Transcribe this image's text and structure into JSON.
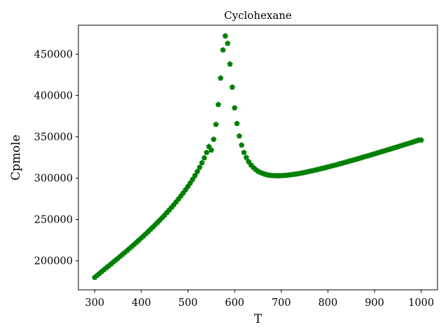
{
  "chart_data": {
    "type": "scatter",
    "title": "Cyclohexane",
    "xlabel": "T",
    "ylabel": "Cpmole",
    "xlim": [
      265,
      1035
    ],
    "ylim": [
      165000,
      485000
    ],
    "xticks": [
      300,
      400,
      500,
      600,
      700,
      800,
      900,
      1000
    ],
    "yticks": [
      200000,
      250000,
      300000,
      350000,
      400000,
      450000
    ],
    "grid": false,
    "marker": "pentagon",
    "color": "#008000",
    "series": [
      {
        "points": [
          [
            300,
            180000
          ],
          [
            305,
            182300
          ],
          [
            310,
            184700
          ],
          [
            315,
            187000
          ],
          [
            320,
            189300
          ],
          [
            325,
            191600
          ],
          [
            330,
            193900
          ],
          [
            335,
            196200
          ],
          [
            340,
            198600
          ],
          [
            345,
            200900
          ],
          [
            350,
            203200
          ],
          [
            355,
            205600
          ],
          [
            360,
            208000
          ],
          [
            365,
            210300
          ],
          [
            370,
            212700
          ],
          [
            375,
            215200
          ],
          [
            380,
            217600
          ],
          [
            385,
            220100
          ],
          [
            390,
            222600
          ],
          [
            395,
            225100
          ],
          [
            400,
            227700
          ],
          [
            405,
            230300
          ],
          [
            410,
            232900
          ],
          [
            415,
            235600
          ],
          [
            420,
            238300
          ],
          [
            425,
            241000
          ],
          [
            430,
            243800
          ],
          [
            435,
            246600
          ],
          [
            440,
            249500
          ],
          [
            445,
            252400
          ],
          [
            450,
            255400
          ],
          [
            455,
            258500
          ],
          [
            460,
            261600
          ],
          [
            465,
            264800
          ],
          [
            470,
            268100
          ],
          [
            475,
            271500
          ],
          [
            480,
            275000
          ],
          [
            485,
            278600
          ],
          [
            490,
            282300
          ],
          [
            495,
            286100
          ],
          [
            500,
            290100
          ],
          [
            505,
            294300
          ],
          [
            510,
            298600
          ],
          [
            515,
            303200
          ],
          [
            520,
            308000
          ],
          [
            525,
            313100
          ],
          [
            530,
            318600
          ],
          [
            535,
            324500
          ],
          [
            540,
            331000
          ],
          [
            545,
            338200
          ],
          [
            550,
            334000
          ],
          [
            555,
            347000
          ],
          [
            560,
            365000
          ],
          [
            565,
            389000
          ],
          [
            570,
            421000
          ],
          [
            575,
            455000
          ],
          [
            580,
            472000
          ],
          [
            585,
            463000
          ],
          [
            590,
            438000
          ],
          [
            595,
            410000
          ],
          [
            600,
            385000
          ],
          [
            605,
            366000
          ],
          [
            610,
            351000
          ],
          [
            615,
            340000
          ],
          [
            620,
            331000
          ],
          [
            625,
            325000
          ],
          [
            630,
            320000
          ],
          [
            635,
            316000
          ],
          [
            640,
            313000
          ],
          [
            645,
            310500
          ],
          [
            650,
            308500
          ],
          [
            655,
            307000
          ],
          [
            660,
            305800
          ],
          [
            665,
            304800
          ],
          [
            670,
            304000
          ],
          [
            675,
            303500
          ],
          [
            680,
            303200
          ],
          [
            685,
            303000
          ],
          [
            690,
            302900
          ],
          [
            695,
            302900
          ],
          [
            700,
            303000
          ],
          [
            705,
            303200
          ],
          [
            710,
            303400
          ],
          [
            715,
            303700
          ],
          [
            720,
            304000
          ],
          [
            725,
            304400
          ],
          [
            730,
            304800
          ],
          [
            735,
            305300
          ],
          [
            740,
            305800
          ],
          [
            745,
            306300
          ],
          [
            750,
            306900
          ],
          [
            755,
            307500
          ],
          [
            760,
            308100
          ],
          [
            765,
            308700
          ],
          [
            770,
            309400
          ],
          [
            775,
            310000
          ],
          [
            780,
            310700
          ],
          [
            785,
            311400
          ],
          [
            790,
            312100
          ],
          [
            795,
            312800
          ],
          [
            800,
            313500
          ],
          [
            805,
            314300
          ],
          [
            810,
            315000
          ],
          [
            815,
            315700
          ],
          [
            820,
            316500
          ],
          [
            825,
            317300
          ],
          [
            830,
            318000
          ],
          [
            835,
            318800
          ],
          [
            840,
            319600
          ],
          [
            845,
            320400
          ],
          [
            850,
            321200
          ],
          [
            855,
            322000
          ],
          [
            860,
            322800
          ],
          [
            865,
            323600
          ],
          [
            870,
            324400
          ],
          [
            875,
            325300
          ],
          [
            880,
            326100
          ],
          [
            885,
            326900
          ],
          [
            890,
            327700
          ],
          [
            895,
            328600
          ],
          [
            900,
            329400
          ],
          [
            905,
            330300
          ],
          [
            910,
            331100
          ],
          [
            915,
            332000
          ],
          [
            920,
            332800
          ],
          [
            925,
            333700
          ],
          [
            930,
            334500
          ],
          [
            935,
            335400
          ],
          [
            940,
            336300
          ],
          [
            945,
            337100
          ],
          [
            950,
            338000
          ],
          [
            955,
            338900
          ],
          [
            960,
            339800
          ],
          [
            965,
            340700
          ],
          [
            970,
            341500
          ],
          [
            975,
            342400
          ],
          [
            980,
            343300
          ],
          [
            985,
            344200
          ],
          [
            990,
            345100
          ],
          [
            995,
            346000
          ],
          [
            1000,
            346000
          ]
        ]
      }
    ]
  }
}
